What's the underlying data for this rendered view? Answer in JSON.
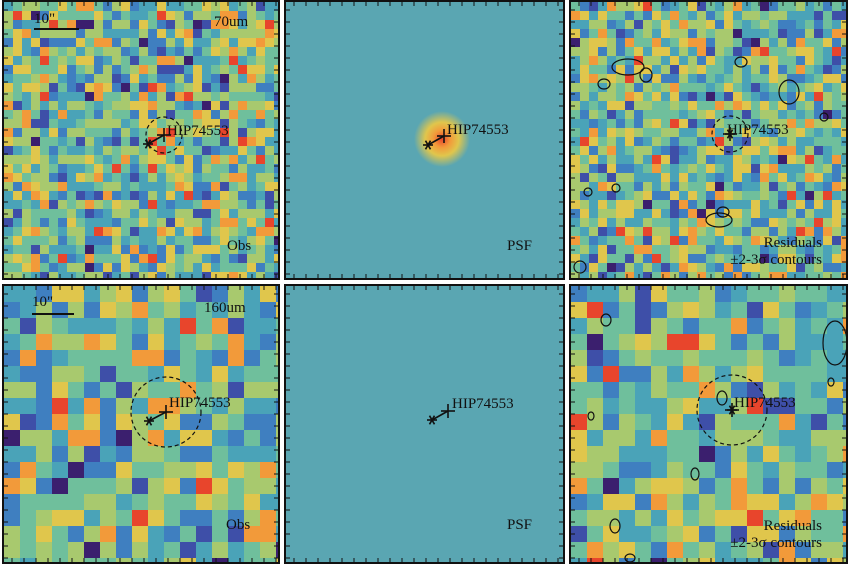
{
  "panels": [
    {
      "id": "p70-obs",
      "kind": "obs",
      "band_label": "70um",
      "scale_label": "10\"",
      "target_label": "HIP74553",
      "corner_label": "Obs"
    },
    {
      "id": "p70-psf",
      "kind": "psf",
      "target_label": "HIP74553",
      "corner_label": "PSF"
    },
    {
      "id": "p70-res",
      "kind": "resid",
      "target_label": "HIP74553",
      "corner_label_1": "Residuals",
      "corner_label_2": "±2-3σ contours"
    },
    {
      "id": "p160-obs",
      "kind": "obs",
      "band_label": "160um",
      "scale_label": "10\"",
      "target_label": "HIP74553",
      "corner_label": "Obs"
    },
    {
      "id": "p160-psf",
      "kind": "psf",
      "target_label": "HIP74553",
      "corner_label": "PSF"
    },
    {
      "id": "p160-res",
      "kind": "resid",
      "target_label": "HIP74553",
      "corner_label_1": "Residuals",
      "corner_label_2": "±2-3σ contours"
    }
  ],
  "colormap": [
    "#3b1f6e",
    "#3e4fa8",
    "#3f7fc0",
    "#4aa3b8",
    "#6fbf9c",
    "#a8c96e",
    "#e0c64c",
    "#f29a3a",
    "#e8452c"
  ],
  "psf_background": "#5aa6b2",
  "marker_color": "#111111"
}
